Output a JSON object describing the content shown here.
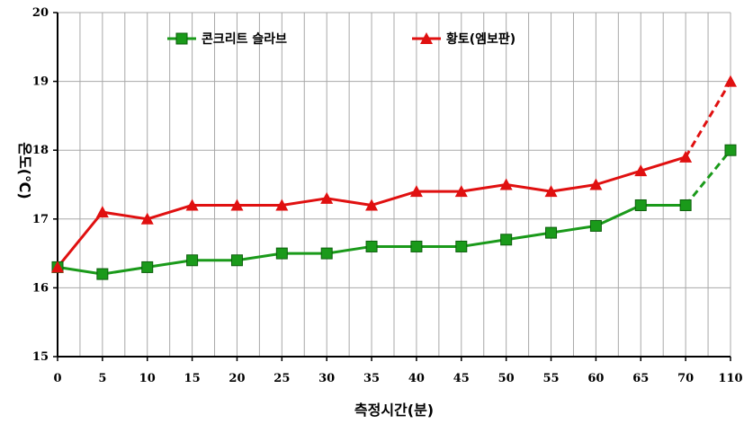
{
  "chart_data": {
    "type": "line",
    "title": "",
    "xlabel": "측정시간(분)",
    "ylabel": "온도(℃)",
    "categories": [
      "0",
      "5",
      "10",
      "15",
      "20",
      "25",
      "30",
      "35",
      "40",
      "45",
      "50",
      "55",
      "60",
      "65",
      "70",
      "110"
    ],
    "ylim": [
      15,
      20
    ],
    "yticks": [
      "15",
      "16",
      "17",
      "18",
      "19",
      "20"
    ],
    "grid": true,
    "legend_position": "top",
    "series": [
      {
        "name": "콘크리트 슬라브",
        "color": "#1a9a1a",
        "marker": "square",
        "values": [
          16.3,
          16.2,
          16.3,
          16.4,
          16.4,
          16.5,
          16.5,
          16.6,
          16.6,
          16.6,
          16.7,
          16.8,
          16.9,
          17.2,
          17.2,
          18.0
        ],
        "dashed_last_segment": true
      },
      {
        "name": "황토(엠보판)",
        "color": "#e01010",
        "marker": "triangle",
        "values": [
          16.3,
          17.1,
          17.0,
          17.2,
          17.2,
          17.2,
          17.3,
          17.2,
          17.4,
          17.4,
          17.5,
          17.4,
          17.5,
          17.7,
          17.9,
          19.0
        ],
        "dashed_last_segment": true
      }
    ]
  }
}
